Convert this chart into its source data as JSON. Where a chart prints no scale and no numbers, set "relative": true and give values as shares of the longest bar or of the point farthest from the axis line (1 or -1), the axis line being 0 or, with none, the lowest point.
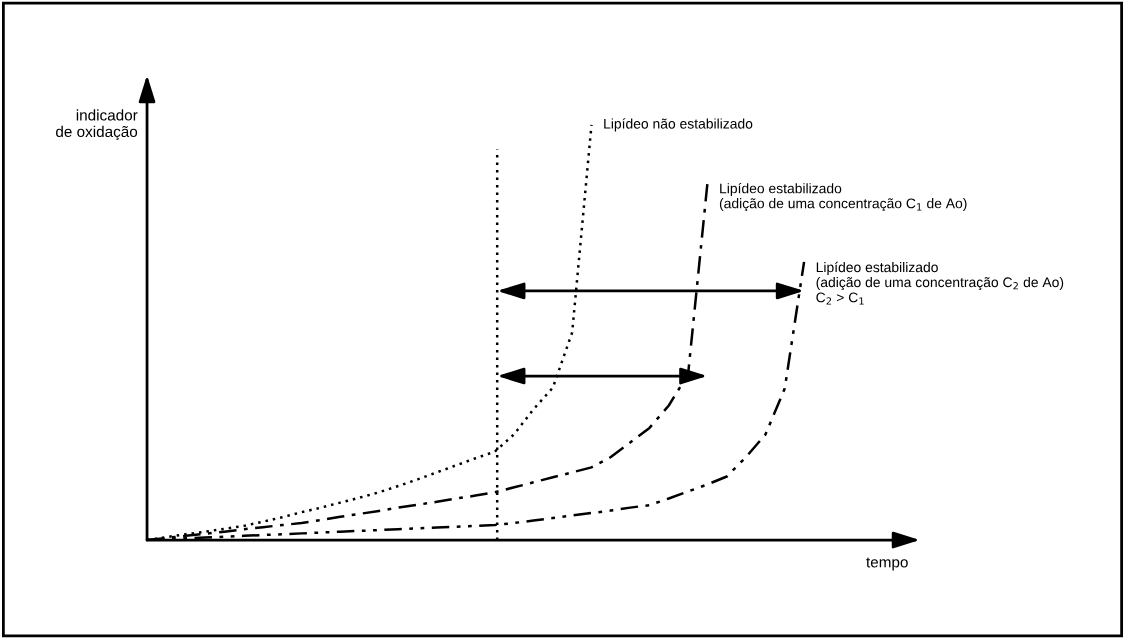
{
  "chart_data": {
    "type": "line",
    "relative": true,
    "xlabel": "tempo",
    "ylabel": "indicador\nde oxidação",
    "marker": "none",
    "categories": [
      null,
      null,
      null,
      null,
      null,
      null,
      null,
      null,
      null,
      null,
      null,
      null,
      null,
      null,
      null,
      null,
      null,
      null,
      null,
      null,
      null,
      null,
      null,
      null,
      null,
      null,
      null,
      null,
      null,
      null,
      null,
      null,
      null,
      null,
      null
    ],
    "series": [
      {
        "name": "Lipídeo não estabilizado",
        "color": "#000000",
        "line_style": "dotted",
        "values": [
          0,
          0.007,
          0.014,
          0.02,
          0.027,
          0.034,
          0.044,
          0.055,
          0.067,
          0.078,
          0.09,
          0.102,
          0.115,
          0.13,
          0.146,
          0.163,
          0.18,
          0.197,
          0.213,
          0.255,
          0.315,
          0.367,
          0.5,
          1.0,
          null,
          null,
          null,
          null,
          null,
          null,
          null,
          null,
          null,
          null,
          null
        ]
      },
      {
        "name": "Lipídeo estabilizado\n(adição de uma concentração C$_{1}$ de Ao)",
        "color": "#000000",
        "line_style": "dashdot",
        "values": [
          0,
          0.005,
          0.01,
          0.015,
          0.02,
          0.026,
          0.031,
          0.036,
          0.041,
          0.048,
          0.056,
          0.063,
          0.07,
          0.078,
          0.085,
          0.092,
          0.1,
          0.107,
          0.115,
          0.127,
          0.139,
          0.151,
          0.163,
          0.175,
          0.2,
          0.235,
          0.27,
          0.324,
          0.4,
          0.86,
          null,
          null,
          null,
          null,
          null
        ]
      },
      {
        "name": "Lipídeo estabilizado\n(adição de uma concentração C$_{2}$ de Ao)\nC$_{2}$ > C$_{1}$",
        "color": "#000000",
        "line_style": "dashdotdot",
        "values": [
          0,
          0.002,
          0.004,
          0.006,
          0.008,
          0.01,
          0.012,
          0.014,
          0.016,
          0.018,
          0.02,
          0.022,
          0.024,
          0.026,
          0.028,
          0.03,
          0.032,
          0.034,
          0.036,
          0.041,
          0.047,
          0.053,
          0.059,
          0.065,
          0.071,
          0.078,
          0.084,
          0.1,
          0.117,
          0.134,
          0.153,
          0.2,
          0.254,
          0.365,
          0.67
        ]
      }
    ],
    "legend": false
  }
}
